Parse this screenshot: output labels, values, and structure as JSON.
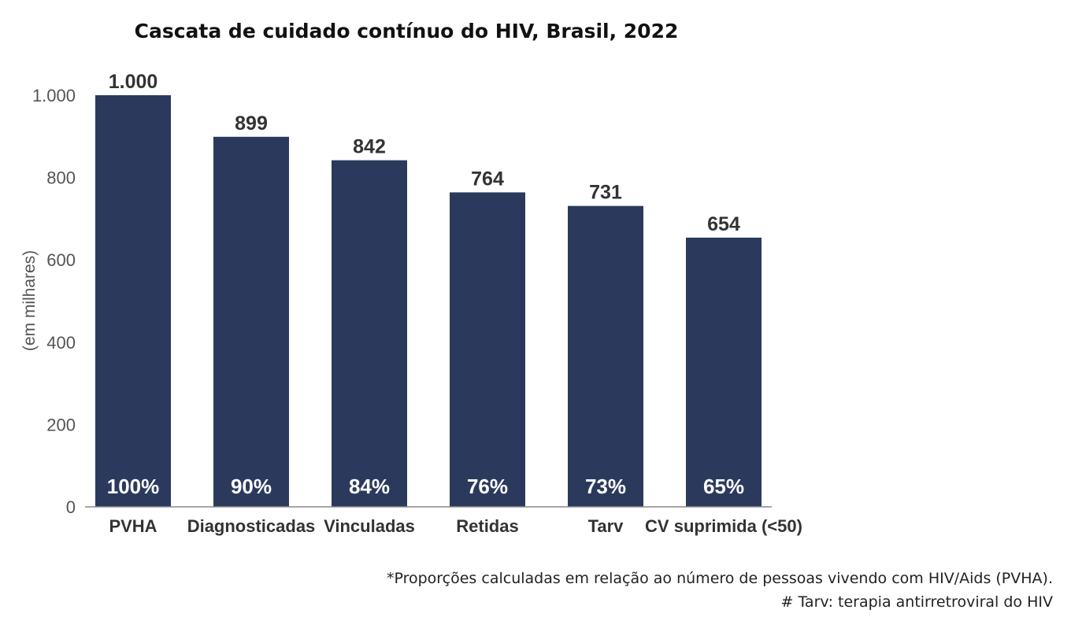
{
  "chart_data": {
    "type": "bar",
    "title": "Cascata de cuidado contínuo do HIV, Brasil, 2022",
    "ylabel": "(em milhares)",
    "xlabel": "",
    "ylim": [
      0,
      1000
    ],
    "yticks": [
      0,
      200,
      400,
      600,
      800,
      1000
    ],
    "ytick_labels": [
      "0",
      "200",
      "400",
      "600",
      "800",
      "1.000"
    ],
    "categories": [
      "PVHA",
      "Diagnosticadas",
      "Vinculadas",
      "Retidas",
      "Tarv",
      "CV suprimida (<50)"
    ],
    "values": [
      1000,
      899,
      842,
      764,
      731,
      654
    ],
    "value_labels": [
      "1.000",
      "899",
      "842",
      "764",
      "731",
      "654"
    ],
    "percent_labels": [
      "100%",
      "90%",
      "84%",
      "76%",
      "73%",
      "65%"
    ],
    "bar_color": "#2b3a5c",
    "grid": false,
    "legend": "none"
  },
  "footnotes": [
    "*Proporções calculadas em relação ao número de pessoas vivendo com HIV/Aids (PVHA).",
    "# Tarv: terapia antirretroviral do HIV"
  ]
}
